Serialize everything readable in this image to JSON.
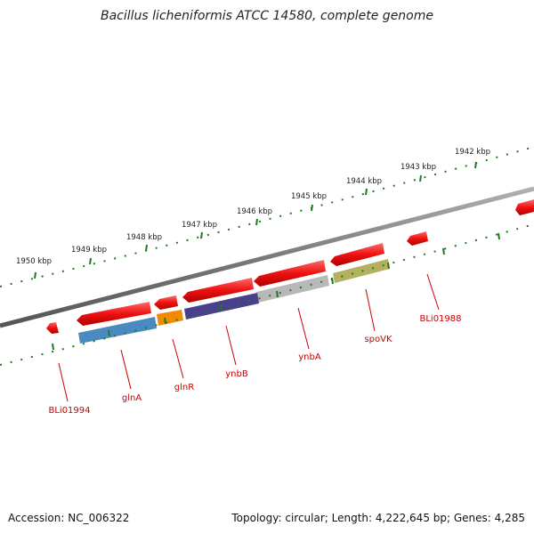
{
  "title": "Bacillus licheniformis ATCC 14580, complete genome",
  "footer": {
    "accession": "Accession: NC_006322",
    "summary": "Topology: circular; Length: 4,222,645 bp; Genes: 4,285"
  },
  "colors": {
    "backbone": "#808080",
    "tick": "#1f7a1f",
    "forward_gene": "#ee1111",
    "label": "#cc0000"
  },
  "kbp_labels": [
    "1942 kbp",
    "1943 kbp",
    "1944 kbp",
    "1945 kbp",
    "1946 kbp",
    "1947 kbp",
    "1948 kbp",
    "1949 kbp",
    "1950 kbp"
  ],
  "gene_labels": [
    "BLi01988",
    "spoVK",
    "ynbA",
    "ynbB",
    "glnR",
    "glnA",
    "BLi01994"
  ],
  "gene_colors": {
    "spoVK": "#b5b060",
    "ynbA": "#b8b8b8",
    "ynbB": "#4a3f8c",
    "glnR": "#f08a00",
    "glnA": "#4a8ac0"
  }
}
